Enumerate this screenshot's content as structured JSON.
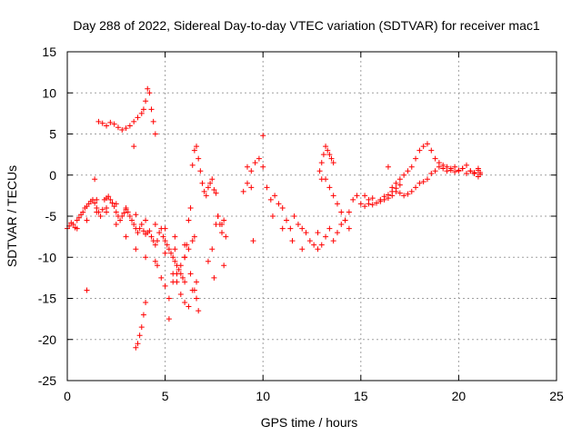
{
  "chart_data": {
    "type": "scatter",
    "title": "Day 288 of 2022, Sidereal Day-to-day VTEC variation (SDTVAR) for receiver mac1",
    "xlabel": "GPS time / hours",
    "ylabel": "SDTVAR / TECUs",
    "xlim": [
      0,
      25
    ],
    "ylim": [
      -25,
      15
    ],
    "xticks": [
      0,
      5,
      10,
      15,
      20,
      25
    ],
    "yticks": [
      15,
      10,
      5,
      0,
      -5,
      -10,
      -15,
      -20,
      -25
    ],
    "grid": true,
    "marker": "+",
    "color": "#ff0000",
    "series": [
      {
        "name": "mac1",
        "x": [
          0.0,
          0.1,
          0.2,
          0.3,
          0.4,
          0.5,
          0.6,
          0.7,
          0.8,
          0.9,
          1.0,
          1.1,
          1.2,
          1.3,
          1.4,
          1.5,
          1.6,
          1.7,
          1.8,
          1.9,
          2.0,
          2.1,
          2.2,
          2.3,
          2.4,
          2.5,
          2.6,
          2.7,
          2.8,
          2.9,
          3.0,
          3.1,
          3.2,
          3.3,
          3.4,
          3.5,
          3.6,
          3.7,
          3.8,
          3.9,
          4.0,
          4.1,
          4.2,
          4.3,
          4.4,
          4.5,
          4.6,
          4.7,
          4.8,
          4.9,
          5.0,
          5.1,
          5.2,
          5.3,
          5.4,
          5.5,
          5.6,
          5.7,
          5.8,
          5.9,
          6.0,
          6.1,
          6.2,
          6.3,
          6.4,
          6.5,
          6.6,
          6.7,
          6.8,
          6.9,
          7.0,
          7.1,
          7.2,
          7.3,
          7.4,
          7.5,
          7.6,
          7.7,
          7.8,
          7.9,
          8.0,
          9.0,
          9.2,
          9.4,
          9.6,
          9.8,
          10.0,
          10.2,
          10.4,
          10.6,
          10.8,
          11.0,
          11.2,
          11.4,
          11.6,
          11.8,
          12.0,
          12.2,
          12.4,
          12.6,
          12.8,
          13.0,
          13.2,
          13.4,
          13.6,
          13.8,
          14.0,
          14.2,
          14.4,
          14.6,
          14.8,
          15.0,
          15.2,
          15.4,
          15.6,
          15.8,
          16.0,
          16.2,
          16.4,
          16.6,
          16.8,
          17.0,
          17.2,
          17.4,
          17.6,
          17.8,
          18.0,
          18.2,
          18.4,
          18.6,
          18.8,
          19.0,
          19.2,
          19.4,
          19.6,
          19.8,
          20.0,
          20.2,
          20.4,
          20.6,
          20.8,
          21.0,
          21.1,
          1.4,
          1.6,
          1.8,
          2.0,
          2.2,
          2.4,
          2.6,
          2.8,
          3.0,
          3.2,
          3.4,
          3.6,
          3.8,
          3.9,
          4.0,
          4.1,
          4.2,
          4.3,
          4.4,
          4.5,
          3.4,
          3.5,
          3.6,
          3.7,
          3.8,
          3.9,
          4.0,
          1.0,
          1.5,
          2.0,
          2.5,
          3.0,
          3.5,
          4.0,
          4.5,
          5.0,
          5.5,
          6.0,
          6.3,
          6.5,
          6.6,
          6.7,
          5.2,
          5.4,
          5.6,
          5.8,
          6.0,
          6.2,
          6.4,
          6.6,
          7.5,
          7.7,
          7.9,
          8.1,
          9.5,
          10.0,
          9.2,
          9.4,
          13.0,
          13.2,
          13.4,
          13.6,
          13.8,
          14.0,
          14.2,
          14.4,
          12.8,
          12.9,
          13.0,
          13.1,
          13.2,
          13.3,
          13.4,
          13.5,
          13.6,
          16.4,
          16.6,
          16.8,
          17.0,
          17.2,
          17.4,
          17.6,
          17.8,
          18.0,
          18.2,
          18.4,
          18.6,
          18.8,
          19.0,
          19.2,
          19.4,
          19.6,
          19.8,
          20.0,
          20.2,
          20.4,
          20.6,
          20.8,
          21.0,
          21.1,
          21.0,
          0.5,
          1.0,
          1.5,
          2.0,
          2.5,
          3.0,
          3.5,
          4.0,
          4.5,
          5.0,
          5.5,
          6.0,
          4.6,
          4.8,
          5.0,
          5.2,
          5.4,
          5.6,
          5.8,
          6.0,
          6.2,
          6.4,
          6.5,
          7.2,
          7.4,
          7.6,
          8.0,
          15.2,
          15.4,
          15.6,
          15.8,
          16.0,
          16.2,
          16.4,
          16.6,
          16.8,
          17.0,
          12.0,
          11.5,
          11.0,
          10.5
        ],
        "y": [
          -6.5,
          -6.2,
          -5.8,
          -6.0,
          -6.4,
          -5.5,
          -5.2,
          -4.8,
          -4.5,
          -4.0,
          -3.8,
          -3.5,
          -3.2,
          -3.0,
          -3.4,
          -4.0,
          -4.5,
          -5.0,
          -4.2,
          -3.0,
          -2.8,
          -2.6,
          -3.0,
          -3.4,
          -3.8,
          -4.5,
          -5.0,
          -5.5,
          -5.0,
          -4.6,
          -4.0,
          -4.5,
          -5.0,
          -5.5,
          -6.0,
          -6.5,
          -7.0,
          -6.5,
          -6.0,
          -6.8,
          -7.2,
          -7.0,
          -6.8,
          -7.5,
          -8.0,
          -8.5,
          -8.0,
          -7.0,
          -6.5,
          -7.5,
          -8.0,
          -8.5,
          -9.0,
          -9.5,
          -10.0,
          -10.5,
          -11.0,
          -11.5,
          -12.0,
          -12.5,
          -13.0,
          -8.5,
          -5.5,
          -4.0,
          1.2,
          3.0,
          3.5,
          2.0,
          0.5,
          -1.0,
          -2.0,
          -2.5,
          -1.5,
          -1.0,
          -0.5,
          -1.8,
          -2.2,
          -5.0,
          -6.0,
          -7.0,
          -5.5,
          -2.0,
          -1.0,
          0.5,
          1.5,
          2.0,
          1.0,
          -1.5,
          -3.0,
          -2.5,
          -3.5,
          -4.0,
          -5.5,
          -6.5,
          -5.0,
          -6.0,
          -6.5,
          -7.0,
          -8.0,
          -8.5,
          -9.0,
          -8.5,
          -7.5,
          -6.5,
          -8.0,
          -7.0,
          -6.0,
          -5.5,
          -4.5,
          -3.0,
          -2.5,
          -3.5,
          -3.8,
          -3.5,
          -3.6,
          -3.4,
          -3.2,
          -3.0,
          -2.8,
          -2.5,
          -2.0,
          -2.2,
          -2.5,
          -2.3,
          -2.0,
          -1.5,
          -1.0,
          -0.8,
          -0.5,
          0.2,
          0.5,
          1.0,
          0.8,
          0.5,
          0.6,
          0.4,
          0.5,
          0.8,
          0.2,
          0.5,
          0.3,
          0.6,
          0.1,
          -0.5,
          6.5,
          6.3,
          6.0,
          6.4,
          6.2,
          5.8,
          5.5,
          5.7,
          6.0,
          6.5,
          7.0,
          7.5,
          8.0,
          9.0,
          10.5,
          10.0,
          8.0,
          6.5,
          5.0,
          3.5,
          -21.0,
          -20.5,
          -19.5,
          -18.5,
          -17.0,
          -15.5,
          -14.0,
          -3.0,
          -4.5,
          -6.0,
          -7.5,
          -9.0,
          -10.0,
          -10.5,
          -9.5,
          -9.0,
          -10.0,
          -12.0,
          -14.0,
          -15.0,
          -16.5,
          -17.5,
          -12.0,
          -13.0,
          -14.5,
          -15.5,
          -16.0,
          -14.0,
          -13.0,
          -12.5,
          -5.0,
          -6.0,
          -7.5,
          -8.0,
          4.8,
          1.0,
          -1.5,
          -0.5,
          -0.5,
          -1.5,
          -2.5,
          -3.5,
          -4.5,
          -5.5,
          -6.5,
          -7.0,
          0.5,
          1.5,
          2.5,
          3.5,
          3.0,
          2.5,
          2.0,
          1.5,
          1.0,
          -1.5,
          -1.0,
          -0.5,
          0.0,
          0.5,
          1.0,
          2.0,
          3.0,
          3.5,
          3.8,
          3.0,
          2.0,
          1.5,
          1.2,
          1.0,
          0.8,
          1.0,
          0.6,
          0.8,
          1.2,
          0.5,
          0.2,
          0.8,
          0.3,
          -0.2,
          -6.5,
          -5.5,
          -4.5,
          -4.0,
          -3.5,
          -4.2,
          -4.8,
          -5.5,
          -6.0,
          -6.5,
          -7.5,
          -8.5,
          -11.0,
          -12.5,
          -13.5,
          -15.0,
          -13.0,
          -12.0,
          -11.0,
          -10.0,
          -9.0,
          -8.0,
          -7.5,
          -10.5,
          -9.0,
          -6.0,
          -11.0,
          -2.5,
          -3.0,
          -2.8,
          -3.4,
          -3.0,
          -2.6,
          -2.4,
          -2.0,
          -1.6,
          -1.2,
          -9.0,
          -8.0,
          -6.5,
          -5.0
        ]
      }
    ]
  }
}
